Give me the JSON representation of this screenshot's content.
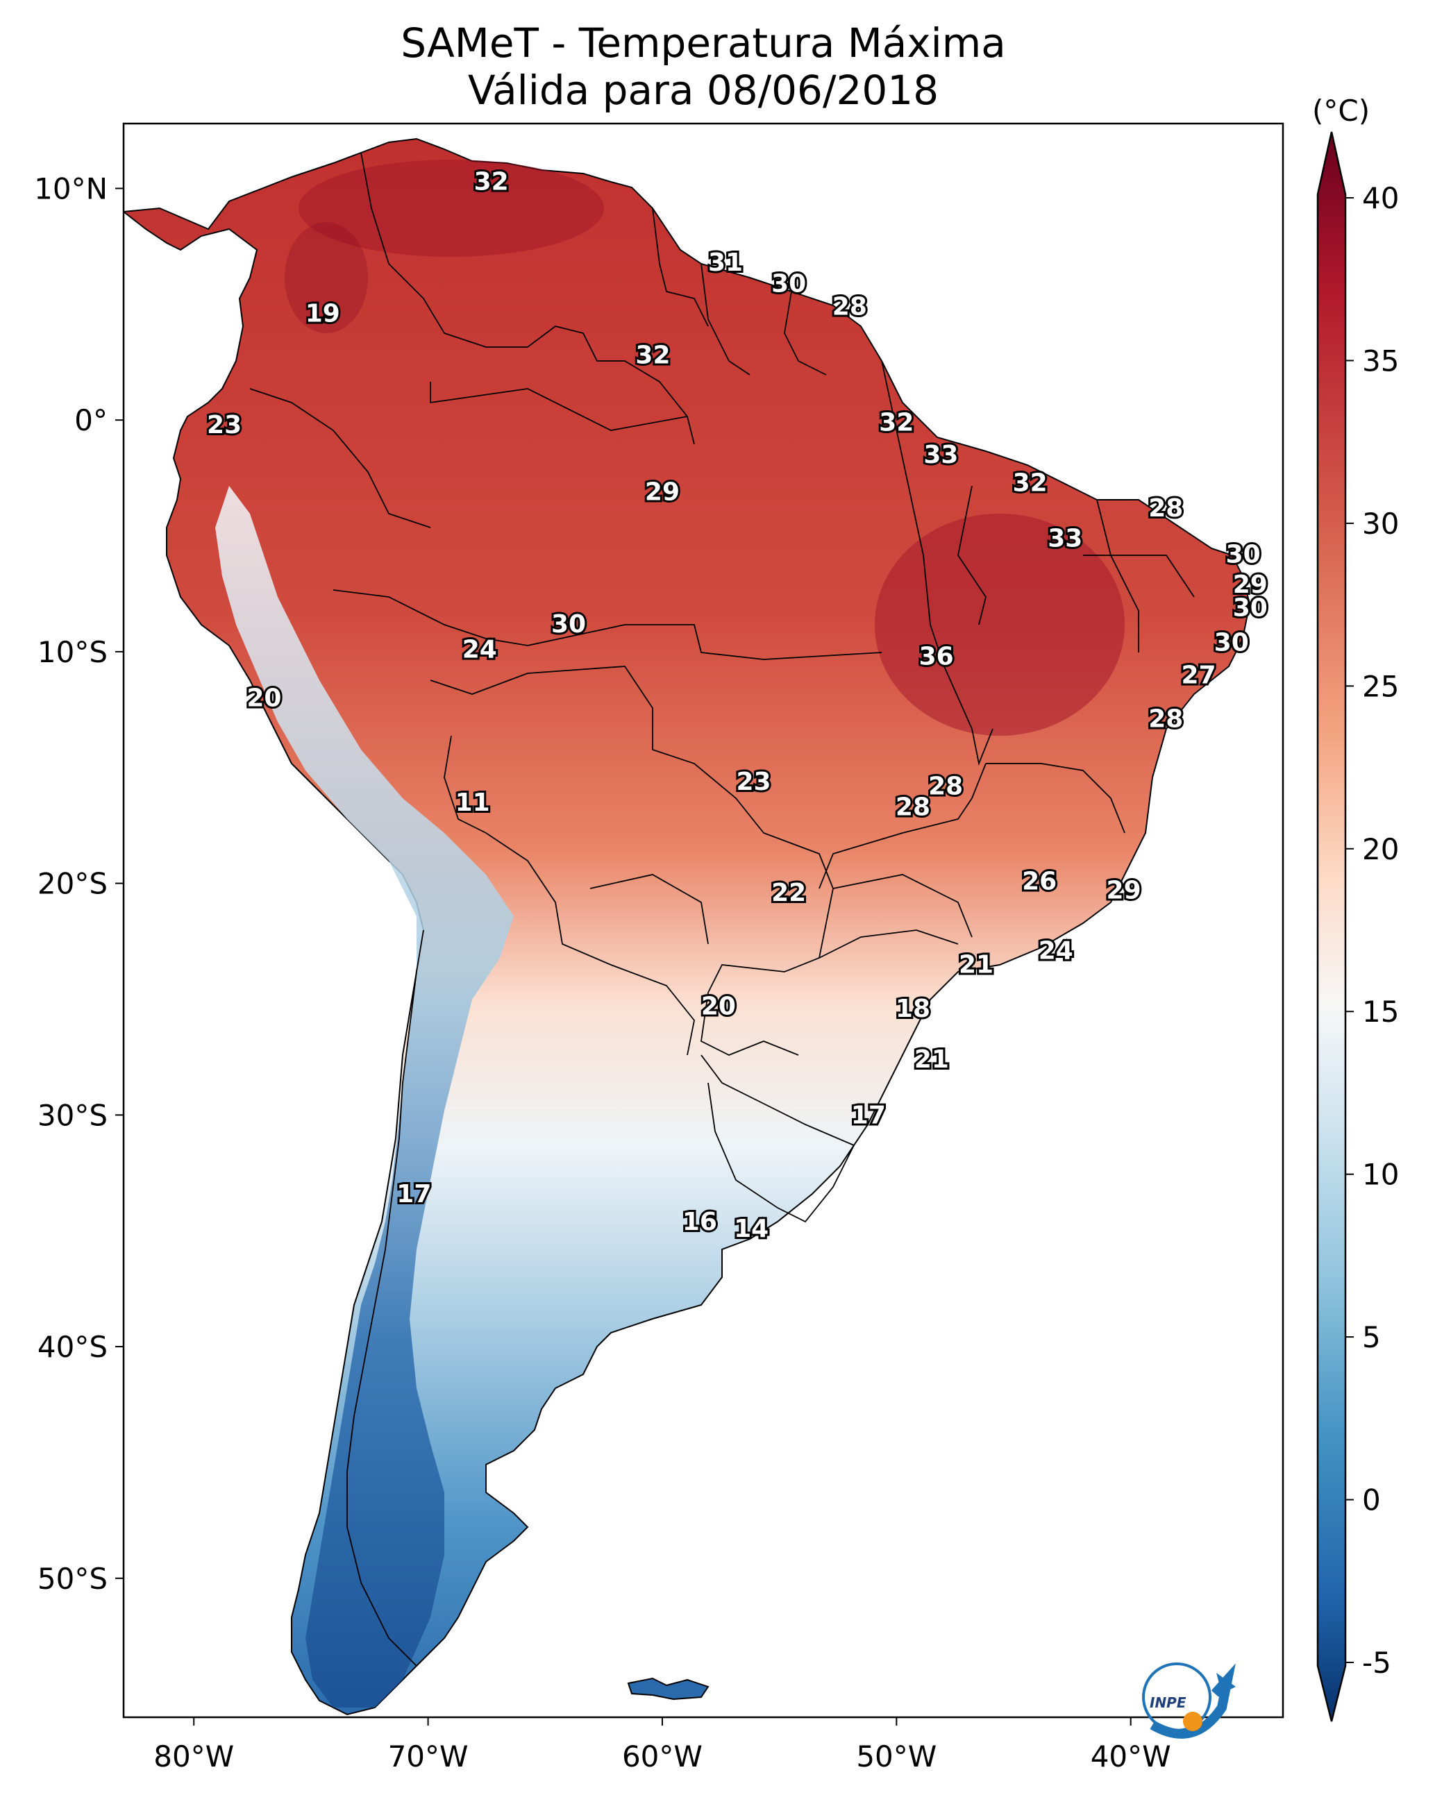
{
  "title": {
    "line1": "SAMeT - Temperatura Máxima",
    "line2": "Válida para 08/06/2018"
  },
  "map": {
    "lon_ticks": [
      "80°W",
      "70°W",
      "60°W",
      "50°W",
      "40°W"
    ],
    "lat_ticks": [
      "10°N",
      "0°",
      "10°S",
      "20°S",
      "30°S",
      "40°S",
      "50°S"
    ],
    "extent": {
      "lon": [
        -83,
        -33.5
      ],
      "lat": [
        -56,
        12.8
      ]
    }
  },
  "colorbar": {
    "unit": "(°C)",
    "ticks": [
      "40",
      "35",
      "30",
      "25",
      "20",
      "15",
      "10",
      "5",
      "0",
      "-5"
    ],
    "range": [
      -5,
      40
    ],
    "colormap": "RdBu_r",
    "colors": [
      "#08306b",
      "#2166ac",
      "#4393c3",
      "#92c5de",
      "#d1e5f0",
      "#f7f7f7",
      "#fddbc7",
      "#f4a582",
      "#d6604d",
      "#b2182b",
      "#67001f"
    ]
  },
  "station_labels": [
    {
      "value": "32",
      "lon": -67.3,
      "lat": 10.3
    },
    {
      "value": "31",
      "lon": -57.3,
      "lat": 6.8
    },
    {
      "value": "30",
      "lon": -54.6,
      "lat": 5.9
    },
    {
      "value": "28",
      "lon": -52.0,
      "lat": 4.9
    },
    {
      "value": "19",
      "lon": -74.5,
      "lat": 4.6
    },
    {
      "value": "32",
      "lon": -60.4,
      "lat": 2.8
    },
    {
      "value": "23",
      "lon": -78.7,
      "lat": -0.2
    },
    {
      "value": "32",
      "lon": -50.0,
      "lat": -0.1
    },
    {
      "value": "33",
      "lon": -48.1,
      "lat": -1.5
    },
    {
      "value": "29",
      "lon": -60.0,
      "lat": -3.1
    },
    {
      "value": "32",
      "lon": -44.3,
      "lat": -2.7
    },
    {
      "value": "28",
      "lon": -38.5,
      "lat": -3.8
    },
    {
      "value": "33",
      "lon": -42.8,
      "lat": -5.1
    },
    {
      "value": "30",
      "lon": -35.2,
      "lat": -5.8
    },
    {
      "value": "29",
      "lon": -34.9,
      "lat": -7.1
    },
    {
      "value": "30",
      "lon": -34.9,
      "lat": -8.1
    },
    {
      "value": "30",
      "lon": -64.0,
      "lat": -8.8
    },
    {
      "value": "24",
      "lon": -67.8,
      "lat": -9.9
    },
    {
      "value": "36",
      "lon": -48.3,
      "lat": -10.2
    },
    {
      "value": "30",
      "lon": -35.7,
      "lat": -9.6
    },
    {
      "value": "27",
      "lon": -37.1,
      "lat": -11.0
    },
    {
      "value": "20",
      "lon": -77.0,
      "lat": -12.0
    },
    {
      "value": "28",
      "lon": -38.5,
      "lat": -12.9
    },
    {
      "value": "23",
      "lon": -56.1,
      "lat": -15.6
    },
    {
      "value": "28",
      "lon": -47.9,
      "lat": -15.8
    },
    {
      "value": "28",
      "lon": -49.3,
      "lat": -16.7
    },
    {
      "value": "11",
      "lon": -68.1,
      "lat": -16.5
    },
    {
      "value": "22",
      "lon": -54.6,
      "lat": -20.4
    },
    {
      "value": "26",
      "lon": -43.9,
      "lat": -19.9
    },
    {
      "value": "29",
      "lon": -40.3,
      "lat": -20.3
    },
    {
      "value": "24",
      "lon": -43.2,
      "lat": -22.9
    },
    {
      "value": "21",
      "lon": -46.6,
      "lat": -23.5
    },
    {
      "value": "20",
      "lon": -57.6,
      "lat": -25.3
    },
    {
      "value": "18",
      "lon": -49.3,
      "lat": -25.4
    },
    {
      "value": "21",
      "lon": -48.5,
      "lat": -27.6
    },
    {
      "value": "17",
      "lon": -51.2,
      "lat": -30.0
    },
    {
      "value": "17",
      "lon": -70.6,
      "lat": -33.4
    },
    {
      "value": "16",
      "lon": -58.4,
      "lat": -34.6
    },
    {
      "value": "14",
      "lon": -56.2,
      "lat": -34.9
    }
  ],
  "logo": {
    "text": "INPE"
  }
}
